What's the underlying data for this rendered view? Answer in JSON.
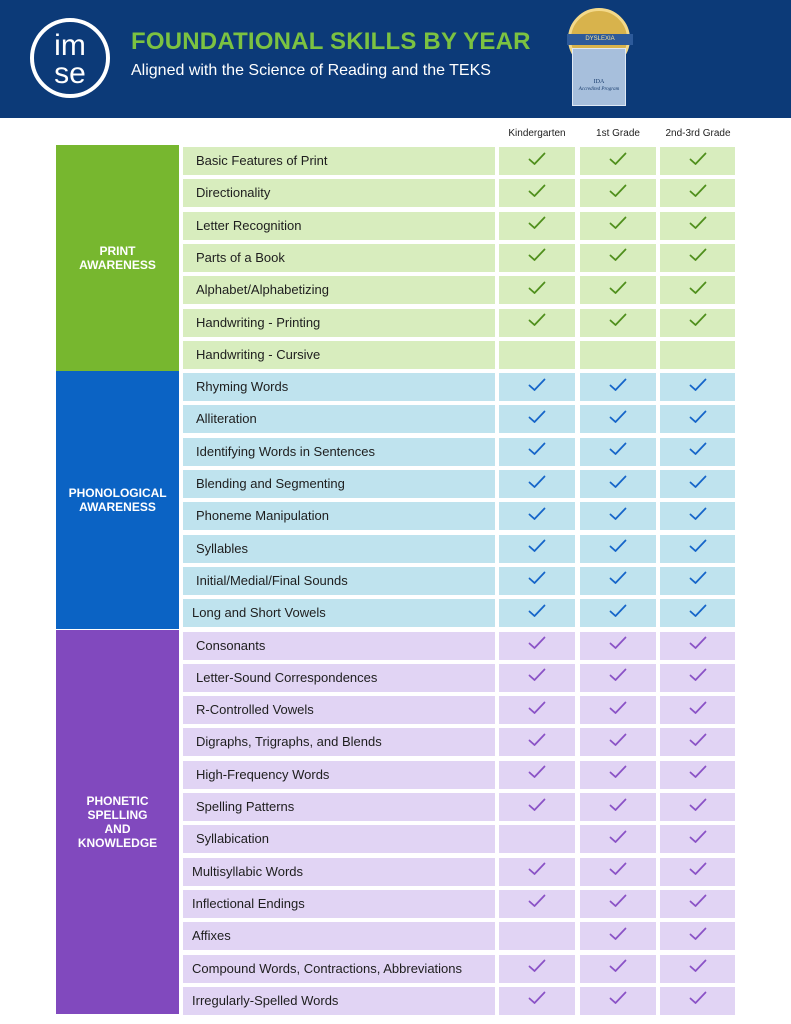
{
  "header": {
    "logo_line1": "im",
    "logo_line2": "se",
    "title": "FOUNDATIONAL SKILLS BY YEAR",
    "subtitle": "Aligned with the Science of Reading and the TEKS",
    "badge_band": "DYSLEXIA",
    "badge_line1": "IDA",
    "badge_line2": "Accredited Program"
  },
  "columns": [
    "Kindergarten",
    "1st Grade",
    "2nd-3rd Grade"
  ],
  "check_icon": "checkmark-icon",
  "sections": [
    {
      "name": "PRINT AWARENESS",
      "color": "#77b72f",
      "row_color": "#d8edbe",
      "check_color": "#4f8f1c",
      "skills": [
        {
          "label": "Basic Features of Print",
          "checks": [
            true,
            true,
            true
          ]
        },
        {
          "label": "Directionality",
          "checks": [
            true,
            true,
            true
          ]
        },
        {
          "label": "Letter Recognition",
          "checks": [
            true,
            true,
            true
          ]
        },
        {
          "label": "Parts of a Book",
          "checks": [
            true,
            true,
            true
          ]
        },
        {
          "label": "Alphabet/Alphabetizing",
          "checks": [
            true,
            true,
            true
          ]
        },
        {
          "label": "Handwriting - Printing",
          "checks": [
            true,
            true,
            true
          ]
        },
        {
          "label": "Handwriting - Cursive",
          "checks": [
            false,
            false,
            false
          ]
        }
      ]
    },
    {
      "name": "PHONOLOGICAL AWARENESS",
      "color": "#0b63c4",
      "row_color": "#bfe3ee",
      "check_color": "#1565c9",
      "skills": [
        {
          "label": "Rhyming Words",
          "checks": [
            true,
            true,
            true
          ]
        },
        {
          "label": "Alliteration",
          "checks": [
            true,
            true,
            true
          ]
        },
        {
          "label": "Identifying Words in Sentences",
          "checks": [
            true,
            true,
            true
          ]
        },
        {
          "label": "Blending and Segmenting",
          "checks": [
            true,
            true,
            true
          ]
        },
        {
          "label": "Phoneme Manipulation",
          "checks": [
            true,
            true,
            true
          ]
        },
        {
          "label": "Syllables",
          "checks": [
            true,
            true,
            true
          ]
        },
        {
          "label": "Initial/Medial/Final Sounds",
          "checks": [
            true,
            true,
            true
          ]
        },
        {
          "label": "Long and Short Vowels",
          "checks": [
            true,
            true,
            true
          ]
        }
      ]
    },
    {
      "name": "PHONETIC SPELLING AND KNOWLEDGE",
      "color": "#8149be",
      "row_color": "#e1d4f4",
      "check_color": "#8a52c6",
      "skills": [
        {
          "label": "Consonants",
          "checks": [
            true,
            true,
            true
          ]
        },
        {
          "label": "Letter-Sound Correspondences",
          "checks": [
            true,
            true,
            true
          ]
        },
        {
          "label": "R-Controlled Vowels",
          "checks": [
            true,
            true,
            true
          ]
        },
        {
          "label": "Digraphs, Trigraphs, and Blends",
          "checks": [
            true,
            true,
            true
          ]
        },
        {
          "label": "High-Frequency Words",
          "checks": [
            true,
            true,
            true
          ]
        },
        {
          "label": "Spelling Patterns",
          "checks": [
            true,
            true,
            true
          ]
        },
        {
          "label": "Syllabication",
          "checks": [
            false,
            true,
            true
          ]
        },
        {
          "label": "Multisyllabic Words",
          "checks": [
            true,
            true,
            true
          ]
        },
        {
          "label": "Inflectional Endings",
          "checks": [
            true,
            true,
            true
          ]
        },
        {
          "label": "Affixes",
          "checks": [
            false,
            true,
            true
          ]
        },
        {
          "label": "Compound Words, Contractions, Abbreviations",
          "checks": [
            true,
            true,
            true
          ]
        },
        {
          "label": "Irregularly-Spelled Words",
          "checks": [
            true,
            true,
            true
          ]
        }
      ]
    }
  ]
}
